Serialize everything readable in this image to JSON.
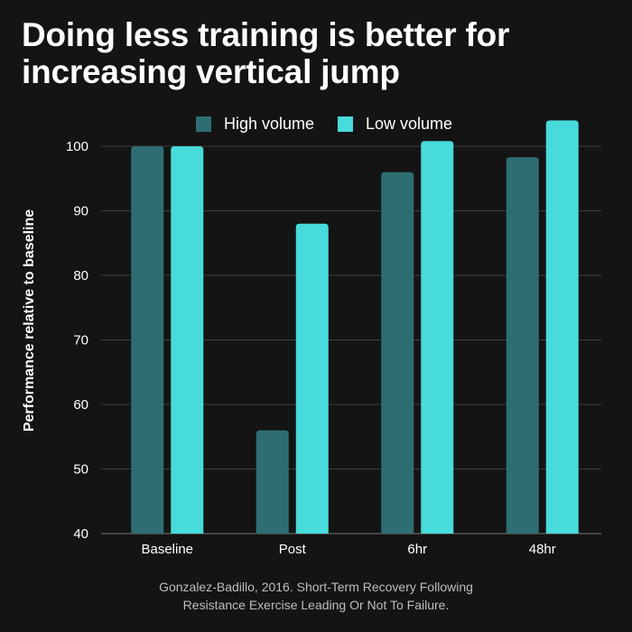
{
  "title_lines": [
    "Doing less training is better for",
    "increasing vertical jump"
  ],
  "source_lines": [
    "Gonzalez-Badillo, 2016. Short-Term Recovery Following",
    "Resistance Exercise Leading Or Not To Failure."
  ],
  "colors": {
    "background": "#141414",
    "high_volume": "#2e6e73",
    "low_volume": "#48dbdb",
    "grid": "#3e3e3e",
    "text": "#ffffff",
    "muted_text": "#bdbdbd"
  },
  "chart_data": {
    "type": "bar",
    "categories": [
      "Baseline",
      "Post",
      "6hr",
      "48hr"
    ],
    "series": [
      {
        "name": "High volume",
        "values": [
          100,
          56,
          96,
          98.3
        ]
      },
      {
        "name": "Low volume",
        "values": [
          100,
          88,
          100.8,
          104
        ]
      }
    ],
    "xlabel": "",
    "ylabel": "Performance relative to baseline",
    "ylim": [
      40,
      105
    ],
    "yticks": [
      40,
      50,
      60,
      70,
      80,
      90,
      100
    ],
    "grid": true,
    "legend_position": "top-center"
  }
}
